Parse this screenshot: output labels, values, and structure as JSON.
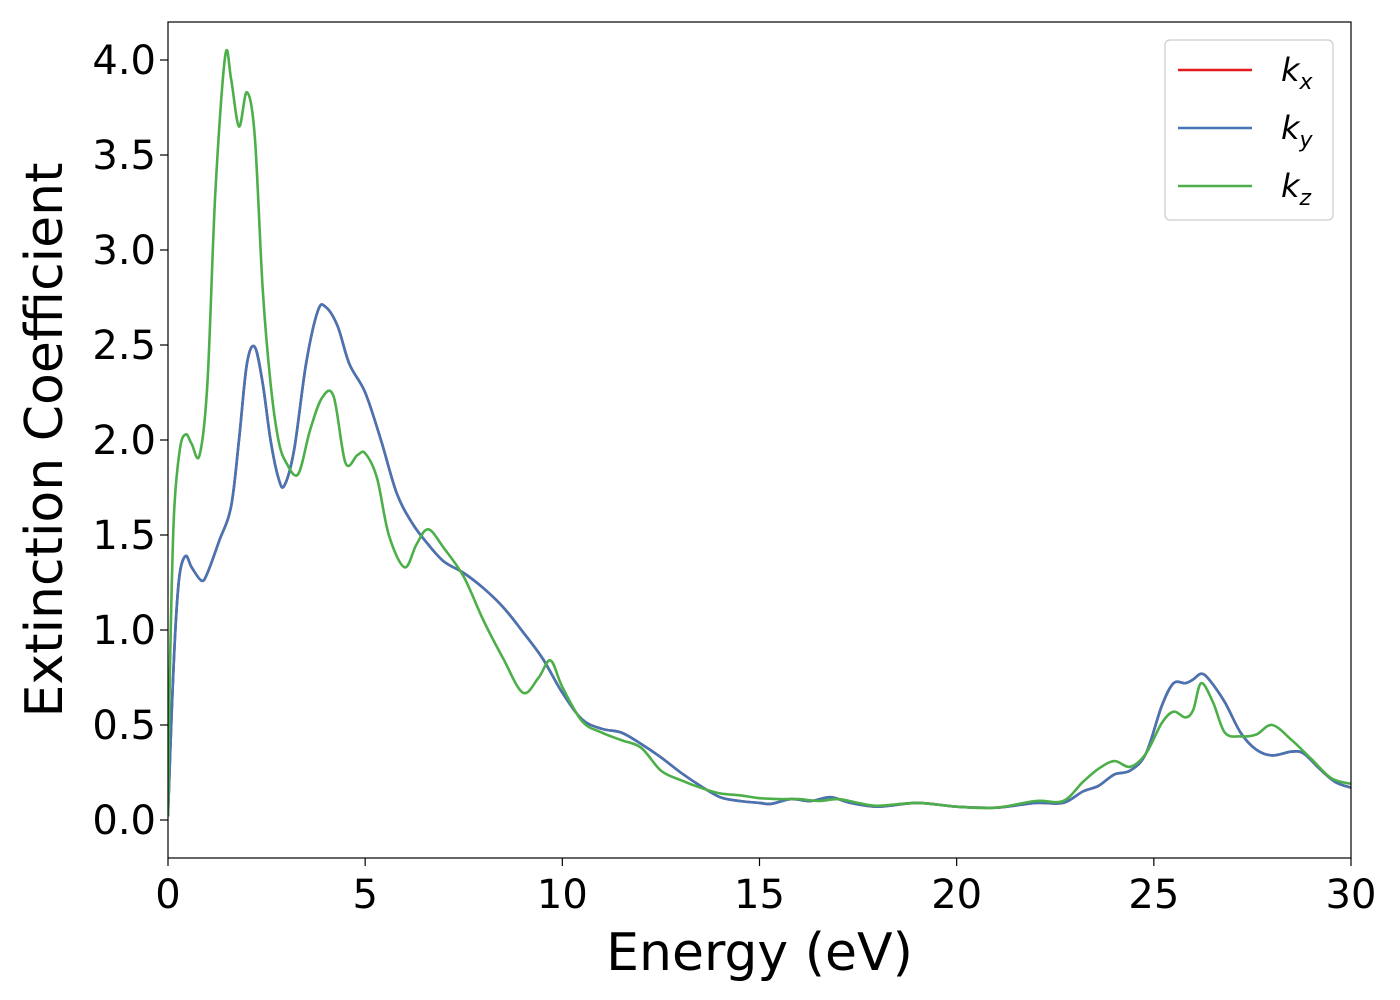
{
  "chart_data": {
    "type": "line",
    "xlabel": "Energy (eV)",
    "ylabel": "Extinction Coefficient",
    "xlim": [
      0,
      30
    ],
    "ylim": [
      -0.2,
      4.2
    ],
    "xticks": [
      0,
      5,
      10,
      15,
      20,
      25,
      30
    ],
    "xtick_labels": [
      "0",
      "5",
      "10",
      "15",
      "20",
      "25",
      "30"
    ],
    "yticks": [
      0.0,
      0.5,
      1.0,
      1.5,
      2.0,
      2.5,
      3.0,
      3.5,
      4.0
    ],
    "ytick_labels": [
      "0.0",
      "0.5",
      "1.0",
      "1.5",
      "2.0",
      "2.5",
      "3.0",
      "3.5",
      "4.0"
    ],
    "grid": false,
    "legend_position": "top-right",
    "series": [
      {
        "name": "k",
        "subscript": "x",
        "color": "#e41a1c",
        "x": [
          0,
          0.1,
          0.2,
          0.3,
          0.45,
          0.6,
          0.85,
          1.0,
          1.3,
          1.6,
          1.8,
          2.0,
          2.2,
          2.4,
          2.6,
          2.8,
          2.95,
          3.2,
          3.5,
          3.8,
          4.0,
          4.3,
          4.6,
          5.0,
          5.4,
          5.8,
          6.2,
          6.6,
          7.0,
          7.5,
          8.0,
          8.5,
          9.0,
          9.5,
          10.0,
          10.5,
          11.0,
          11.5,
          12.0,
          12.5,
          13.0,
          13.5,
          14.0,
          14.5,
          15.0,
          15.3,
          15.8,
          16.3,
          16.8,
          17.3,
          18.0,
          19.0,
          20.0,
          21.0,
          22.0,
          22.7,
          23.2,
          23.6,
          24.0,
          24.4,
          24.8,
          25.2,
          25.5,
          25.8,
          26.0,
          26.2,
          26.4,
          26.8,
          27.2,
          27.6,
          28.0,
          28.5,
          28.8,
          29.2,
          29.6,
          30.0
        ],
        "y": [
          0.02,
          0.6,
          1.05,
          1.3,
          1.39,
          1.33,
          1.26,
          1.3,
          1.47,
          1.65,
          2.0,
          2.4,
          2.49,
          2.3,
          2.0,
          1.8,
          1.76,
          1.95,
          2.4,
          2.68,
          2.7,
          2.6,
          2.4,
          2.25,
          2.0,
          1.72,
          1.56,
          1.45,
          1.36,
          1.3,
          1.22,
          1.12,
          0.99,
          0.85,
          0.67,
          0.53,
          0.48,
          0.46,
          0.4,
          0.33,
          0.25,
          0.18,
          0.12,
          0.1,
          0.09,
          0.085,
          0.11,
          0.1,
          0.12,
          0.09,
          0.07,
          0.09,
          0.07,
          0.065,
          0.09,
          0.09,
          0.15,
          0.18,
          0.24,
          0.26,
          0.35,
          0.6,
          0.72,
          0.72,
          0.74,
          0.77,
          0.74,
          0.62,
          0.46,
          0.37,
          0.34,
          0.36,
          0.35,
          0.27,
          0.2,
          0.17
        ]
      },
      {
        "name": "k",
        "subscript": "y",
        "color": "#4575b4",
        "x": [
          0,
          0.1,
          0.2,
          0.3,
          0.45,
          0.6,
          0.85,
          1.0,
          1.3,
          1.6,
          1.8,
          2.0,
          2.2,
          2.4,
          2.6,
          2.8,
          2.95,
          3.2,
          3.5,
          3.8,
          4.0,
          4.3,
          4.6,
          5.0,
          5.4,
          5.8,
          6.2,
          6.6,
          7.0,
          7.5,
          8.0,
          8.5,
          9.0,
          9.5,
          10.0,
          10.5,
          11.0,
          11.5,
          12.0,
          12.5,
          13.0,
          13.5,
          14.0,
          14.5,
          15.0,
          15.3,
          15.8,
          16.3,
          16.8,
          17.3,
          18.0,
          19.0,
          20.0,
          21.0,
          22.0,
          22.7,
          23.2,
          23.6,
          24.0,
          24.4,
          24.8,
          25.2,
          25.5,
          25.8,
          26.0,
          26.2,
          26.4,
          26.8,
          27.2,
          27.6,
          28.0,
          28.5,
          28.8,
          29.2,
          29.6,
          30.0
        ],
        "y": [
          0.02,
          0.6,
          1.05,
          1.3,
          1.39,
          1.33,
          1.26,
          1.3,
          1.47,
          1.65,
          2.0,
          2.4,
          2.49,
          2.3,
          2.0,
          1.8,
          1.76,
          1.95,
          2.4,
          2.68,
          2.7,
          2.6,
          2.4,
          2.25,
          2.0,
          1.72,
          1.56,
          1.45,
          1.36,
          1.3,
          1.22,
          1.12,
          0.99,
          0.85,
          0.67,
          0.53,
          0.48,
          0.46,
          0.4,
          0.33,
          0.25,
          0.18,
          0.12,
          0.1,
          0.09,
          0.085,
          0.11,
          0.1,
          0.12,
          0.09,
          0.07,
          0.09,
          0.07,
          0.065,
          0.09,
          0.09,
          0.15,
          0.18,
          0.24,
          0.26,
          0.35,
          0.6,
          0.72,
          0.72,
          0.74,
          0.77,
          0.74,
          0.62,
          0.46,
          0.37,
          0.34,
          0.36,
          0.35,
          0.27,
          0.2,
          0.17
        ]
      },
      {
        "name": "k",
        "subscript": "z",
        "color": "#4daf4a",
        "x": [
          0,
          0.05,
          0.15,
          0.3,
          0.45,
          0.6,
          0.8,
          1.0,
          1.2,
          1.45,
          1.6,
          1.8,
          2.0,
          2.2,
          2.4,
          2.6,
          2.8,
          3.0,
          3.3,
          3.6,
          3.9,
          4.2,
          4.5,
          4.8,
          5.0,
          5.3,
          5.6,
          6.0,
          6.3,
          6.6,
          7.0,
          7.5,
          8.0,
          8.5,
          9.0,
          9.4,
          9.7,
          10.0,
          10.5,
          11.0,
          11.5,
          12.0,
          12.5,
          13.0,
          13.5,
          14.0,
          14.5,
          15.0,
          15.5,
          16.0,
          16.5,
          17.0,
          17.5,
          18.0,
          19.0,
          20.0,
          21.0,
          22.0,
          22.7,
          23.2,
          23.6,
          24.0,
          24.4,
          24.8,
          25.2,
          25.5,
          25.8,
          26.0,
          26.2,
          26.5,
          26.8,
          27.2,
          27.6,
          28.0,
          28.5,
          29.0,
          29.5,
          30.0
        ],
        "y": [
          0.02,
          0.8,
          1.6,
          1.95,
          2.03,
          1.98,
          1.92,
          2.3,
          3.3,
          4.02,
          3.9,
          3.65,
          3.83,
          3.6,
          2.8,
          2.3,
          2.0,
          1.88,
          1.82,
          2.05,
          2.22,
          2.23,
          1.88,
          1.92,
          1.93,
          1.8,
          1.5,
          1.33,
          1.45,
          1.53,
          1.43,
          1.28,
          1.05,
          0.85,
          0.67,
          0.75,
          0.84,
          0.7,
          0.52,
          0.46,
          0.42,
          0.38,
          0.26,
          0.21,
          0.17,
          0.14,
          0.13,
          0.115,
          0.11,
          0.11,
          0.1,
          0.11,
          0.09,
          0.075,
          0.09,
          0.07,
          0.065,
          0.1,
          0.1,
          0.2,
          0.27,
          0.31,
          0.28,
          0.35,
          0.51,
          0.57,
          0.54,
          0.58,
          0.72,
          0.62,
          0.46,
          0.44,
          0.45,
          0.5,
          0.42,
          0.32,
          0.22,
          0.19
        ]
      }
    ]
  }
}
